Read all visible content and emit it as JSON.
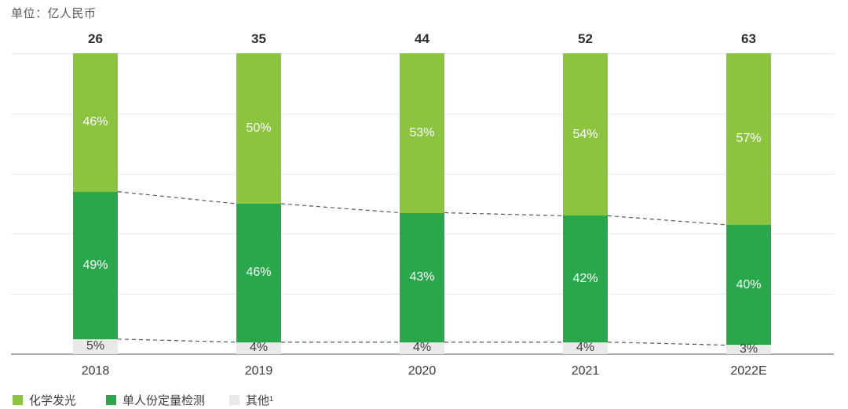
{
  "unit_label": "单位：亿人民币",
  "chart_data": {
    "type": "bar",
    "stacked": true,
    "percent_stacked": true,
    "title": "单位：亿人民币",
    "categories": [
      "2018",
      "2019",
      "2020",
      "2021",
      "2022E"
    ],
    "totals": [
      26,
      35,
      44,
      52,
      63
    ],
    "series": [
      {
        "name": "化学发光",
        "color": "#8BC540",
        "label_color": "#FFFFFF",
        "values": [
          46,
          50,
          53,
          54,
          57
        ]
      },
      {
        "name": "单人份定量检测",
        "color": "#29A84B",
        "label_color": "#FFFFFF",
        "values": [
          49,
          46,
          43,
          42,
          40
        ]
      },
      {
        "name": "其他¹",
        "color": "#E9E9E7",
        "label_color": "#3F3F41",
        "values": [
          5,
          4,
          4,
          4,
          3
        ]
      }
    ],
    "value_suffix": "%",
    "ylim": [
      0,
      100
    ],
    "grid": true,
    "gridline_interval_pct": 20,
    "legend_position": "bottom",
    "dashed_connectors": true
  },
  "colors": {
    "gridline": "#EBEBEB",
    "axis": "#ABABAB",
    "dashed_line": "#58585A",
    "total_text": "#2E2E30",
    "axis_text": "#3C3C3E",
    "title_text": "#58595B"
  }
}
